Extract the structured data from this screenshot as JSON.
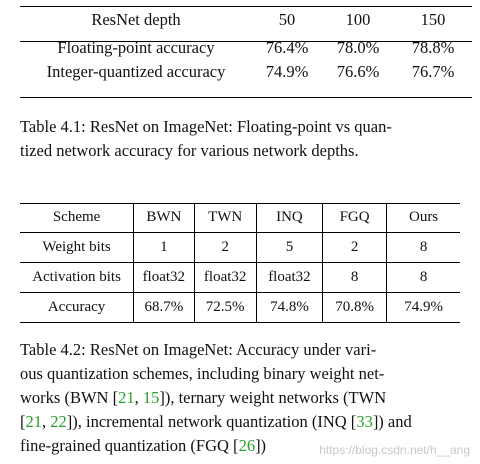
{
  "table1": {
    "header": [
      "ResNet depth",
      "50",
      "100",
      "150"
    ],
    "rows": [
      [
        "Floating-point accuracy",
        "76.4%",
        "78.0%",
        "78.8%"
      ],
      [
        "Integer-quantized accuracy",
        "74.9%",
        "76.6%",
        "76.7%"
      ]
    ],
    "caption_line1": "Table 4.1: ResNet on ImageNet: Floating-point vs quan-",
    "caption_line2": "tized network accuracy for various network depths."
  },
  "table2": {
    "header": [
      "Scheme",
      "BWN",
      "TWN",
      "INQ",
      "FGQ",
      "Ours"
    ],
    "rows": [
      [
        "Weight bits",
        "1",
        "2",
        "5",
        "2",
        "8"
      ],
      [
        "Activation bits",
        "float32",
        "float32",
        "float32",
        "8",
        "8"
      ],
      [
        "Accuracy",
        "68.7%",
        "72.5%",
        "74.8%",
        "70.8%",
        "74.9%"
      ]
    ],
    "caption": {
      "l1": "Table 4.2: ResNet on ImageNet: Accuracy under vari-",
      "l2": "ous quantization schemes, including binary weight net-",
      "l3a": "works (BWN [",
      "c21": "21",
      "comma": ", ",
      "c15": "15",
      "l3b": "]), ternary weight networks (TWN",
      "l4a": "[",
      "c21b": "21",
      "comma2": ", ",
      "c22": "22",
      "l4b": "]), incremental network quantization (INQ [",
      "c33": "33",
      "l4c": "]) and",
      "l5a": "fine-grained quantization (FGQ [",
      "c26": "26",
      "l5b": "])"
    }
  },
  "watermark": "https://blog.csdn.net/h__ang"
}
